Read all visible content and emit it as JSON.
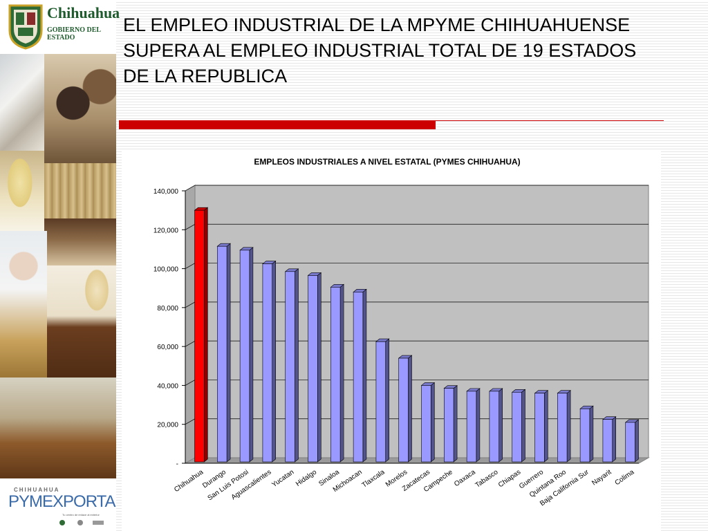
{
  "header": {
    "logo_title": "Chihuahua",
    "logo_subtitle": "GOBIERNO DEL ESTADO"
  },
  "footer_logo": {
    "top": "CHIHUAHUA",
    "brand": "PYMEXPORTA",
    "tagline": "Tu centro de enlace al exterior"
  },
  "slide": {
    "title": "EL EMPLEO INDUSTRIAL DE LA MPYME CHIHUAHUENSE SUPERA AL EMPLEO INDUSTRIAL TOTAL DE 19 ESTADOS DE LA REPUBLICA"
  },
  "colors": {
    "accent_red": "#cc0000",
    "bar_highlight": "#ff0000",
    "bar_default": "#9999ff",
    "plot_background": "#c0c0c0"
  },
  "chart_data": {
    "type": "bar",
    "title": "EMPLEOS INDUSTRIALES A NIVEL ESTATAL (PYMES CHIHUAHUA)",
    "xlabel": "",
    "ylabel": "",
    "ylim": [
      0,
      140000
    ],
    "y_ticks": [
      "-",
      "20,000",
      "40,000",
      "60,000",
      "80,000",
      "100,000",
      "120,000",
      "140,000"
    ],
    "grid": true,
    "style": "3d-columns",
    "highlight_category": "Chihuahua",
    "categories": [
      "Chihuahua",
      "Durango",
      "San Luis Potosi",
      "Aguascalientes",
      "Yucatan",
      "Hidalgo",
      "Sinaloa",
      "Michoacan",
      "Tlaxcala",
      "Morelos",
      "Zacatecas",
      "Campeche",
      "Oaxaca",
      "Tabasco",
      "Chiapas",
      "Guerrero",
      "Quintana Roo",
      "Baja California Sur",
      "Nayarit",
      "Colima"
    ],
    "values": [
      130000,
      111500,
      109500,
      102500,
      98500,
      96500,
      90500,
      88000,
      62500,
      54000,
      40000,
      38500,
      37000,
      37000,
      36500,
      36000,
      36000,
      28000,
      22500,
      21000
    ]
  }
}
